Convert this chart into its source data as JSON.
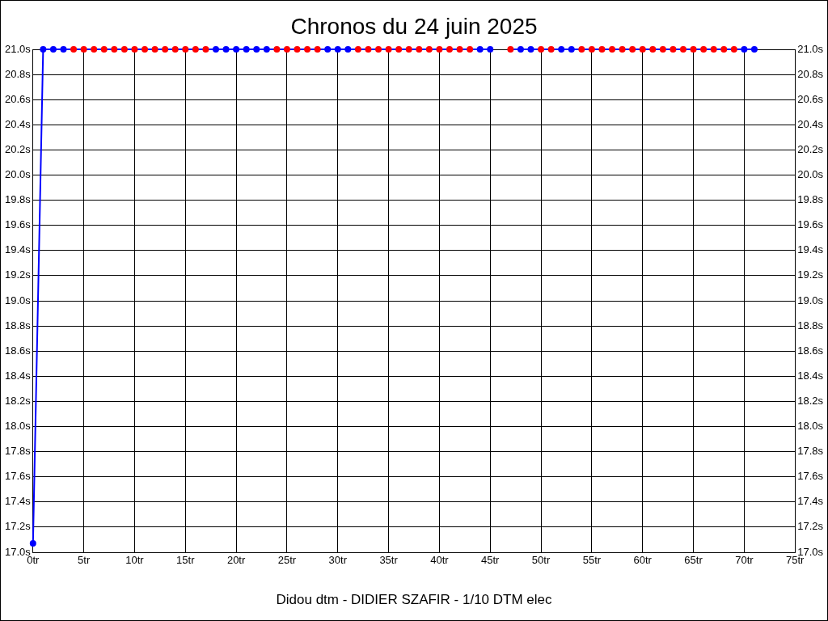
{
  "chart_data": {
    "type": "line",
    "title": "Chronos du 24 juin 2025",
    "xlabel": "Didou dtm - DIDIER SZAFIR - 1/10 DTM elec",
    "x": [
      0,
      1,
      2,
      3,
      4,
      5,
      6,
      7,
      8,
      9,
      10,
      11,
      12,
      13,
      14,
      15,
      16,
      17,
      18,
      19,
      20,
      21,
      22,
      23,
      24,
      25,
      26,
      27,
      28,
      29,
      30,
      31,
      32,
      33,
      34,
      35,
      36,
      37,
      38,
      39,
      40,
      41,
      42,
      43,
      44,
      45,
      46,
      47,
      48,
      49,
      50,
      51,
      52,
      53,
      54,
      55,
      56,
      57,
      58,
      59,
      60,
      61,
      62,
      63,
      64,
      65,
      66,
      67,
      68,
      69,
      70,
      71
    ],
    "series": [
      {
        "color": "#0000ff",
        "values": [
          17.07,
          21.0,
          21.0,
          21.0,
          21.0,
          21.0,
          21.0,
          21.0,
          21.0,
          21.0,
          21.0,
          21.0,
          21.0,
          21.0,
          21.0,
          21.0,
          21.0,
          21.0,
          21.0,
          21.0,
          21.0,
          21.0,
          21.0,
          21.0,
          21.0,
          21.0,
          21.0,
          21.0,
          21.0,
          21.0,
          21.0,
          21.0,
          21.0,
          21.0,
          21.0,
          21.0,
          21.0,
          21.0,
          21.0,
          21.0,
          21.0,
          21.0,
          21.0,
          21.0,
          21.0,
          21.0,
          null,
          21.0,
          21.0,
          21.0,
          21.0,
          21.0,
          21.0,
          21.0,
          21.0,
          21.0,
          21.0,
          21.0,
          21.0,
          21.0,
          21.0,
          21.0,
          21.0,
          21.0,
          21.0,
          21.0,
          21.0,
          21.0,
          21.0,
          21.0,
          21.0,
          21.0
        ],
        "colors": [
          "#0000ff",
          "#0000ff",
          "#0000ff",
          "#0000ff",
          "#ff0000",
          "#ff0000",
          "#ff0000",
          "#ff0000",
          "#ff0000",
          "#ff0000",
          "#ff0000",
          "#ff0000",
          "#ff0000",
          "#ff0000",
          "#ff0000",
          "#ff0000",
          "#ff0000",
          "#ff0000",
          "#0000ff",
          "#0000ff",
          "#0000ff",
          "#0000ff",
          "#0000ff",
          "#0000ff",
          "#ff0000",
          "#ff0000",
          "#ff0000",
          "#ff0000",
          "#ff0000",
          "#0000ff",
          "#0000ff",
          "#0000ff",
          "#ff0000",
          "#ff0000",
          "#ff0000",
          "#ff0000",
          "#ff0000",
          "#ff0000",
          "#ff0000",
          "#ff0000",
          "#ff0000",
          "#ff0000",
          "#ff0000",
          "#ff0000",
          "#0000ff",
          "#0000ff",
          "#ff0000",
          "#ff0000",
          "#0000ff",
          "#0000ff",
          "#ff0000",
          "#ff0000",
          "#0000ff",
          "#0000ff",
          "#ff0000",
          "#ff0000",
          "#ff0000",
          "#ff0000",
          "#ff0000",
          "#ff0000",
          "#ff0000",
          "#ff0000",
          "#ff0000",
          "#ff0000",
          "#ff0000",
          "#ff0000",
          "#ff0000",
          "#ff0000",
          "#ff0000",
          "#ff0000",
          "#0000ff",
          "#0000ff"
        ]
      }
    ],
    "xlim": [
      0,
      75
    ],
    "xticks": [
      {
        "value": 0,
        "label": "0tr"
      },
      {
        "value": 5,
        "label": "5tr"
      },
      {
        "value": 10,
        "label": "10tr"
      },
      {
        "value": 15,
        "label": "15tr"
      },
      {
        "value": 20,
        "label": "20tr"
      },
      {
        "value": 25,
        "label": "25tr"
      },
      {
        "value": 30,
        "label": "30tr"
      },
      {
        "value": 35,
        "label": "35tr"
      },
      {
        "value": 40,
        "label": "40tr"
      },
      {
        "value": 45,
        "label": "45tr"
      },
      {
        "value": 50,
        "label": "50tr"
      },
      {
        "value": 55,
        "label": "55tr"
      },
      {
        "value": 60,
        "label": "60tr"
      },
      {
        "value": 65,
        "label": "65tr"
      },
      {
        "value": 70,
        "label": "70tr"
      },
      {
        "value": 75,
        "label": "75tr"
      }
    ],
    "ylim": [
      17.0,
      21.0
    ],
    "yticks": [
      {
        "value": 17.0,
        "label": "17.0s"
      },
      {
        "value": 17.2,
        "label": "17.2s"
      },
      {
        "value": 17.4,
        "label": "17.4s"
      },
      {
        "value": 17.6,
        "label": "17.6s"
      },
      {
        "value": 17.8,
        "label": "17.8s"
      },
      {
        "value": 18.0,
        "label": "18.0s"
      },
      {
        "value": 18.2,
        "label": "18.2s"
      },
      {
        "value": 18.4,
        "label": "18.4s"
      },
      {
        "value": 18.6,
        "label": "18.6s"
      },
      {
        "value": 18.8,
        "label": "18.8s"
      },
      {
        "value": 19.0,
        "label": "19.0s"
      },
      {
        "value": 19.2,
        "label": "19.2s"
      },
      {
        "value": 19.4,
        "label": "19.4s"
      },
      {
        "value": 19.6,
        "label": "19.6s"
      },
      {
        "value": 19.8,
        "label": "19.8s"
      },
      {
        "value": 20.0,
        "label": "20.0s"
      },
      {
        "value": 20.2,
        "label": "20.2s"
      },
      {
        "value": 20.4,
        "label": "20.4s"
      },
      {
        "value": 20.6,
        "label": "20.6s"
      },
      {
        "value": 20.8,
        "label": "20.8s"
      },
      {
        "value": 21.0,
        "label": "21.0s"
      }
    ],
    "y2lim": [
      17.0,
      21.0
    ],
    "y2ticks": [
      {
        "value": 17.0,
        "label": "17.0s"
      },
      {
        "value": 17.2,
        "label": "17.2s"
      },
      {
        "value": 17.4,
        "label": "17.4s"
      },
      {
        "value": 17.6,
        "label": "17.6s"
      },
      {
        "value": 17.8,
        "label": "17.8s"
      },
      {
        "value": 18.0,
        "label": "18.0s"
      },
      {
        "value": 18.2,
        "label": "18.2s"
      },
      {
        "value": 18.4,
        "label": "18.4s"
      },
      {
        "value": 18.6,
        "label": "18.6s"
      },
      {
        "value": 18.8,
        "label": "18.8s"
      },
      {
        "value": 19.0,
        "label": "19.0s"
      },
      {
        "value": 19.2,
        "label": "19.2s"
      },
      {
        "value": 19.4,
        "label": "19.4s"
      },
      {
        "value": 19.6,
        "label": "19.6s"
      },
      {
        "value": 19.8,
        "label": "19.8s"
      },
      {
        "value": 20.0,
        "label": "20.0s"
      },
      {
        "value": 20.2,
        "label": "20.2s"
      },
      {
        "value": 20.4,
        "label": "20.4s"
      },
      {
        "value": 20.6,
        "label": "20.6s"
      },
      {
        "value": 20.8,
        "label": "20.8s"
      },
      {
        "value": 21.0,
        "label": "21.0s"
      }
    ],
    "grid": true,
    "marker": "circle",
    "line_style": "solid"
  }
}
